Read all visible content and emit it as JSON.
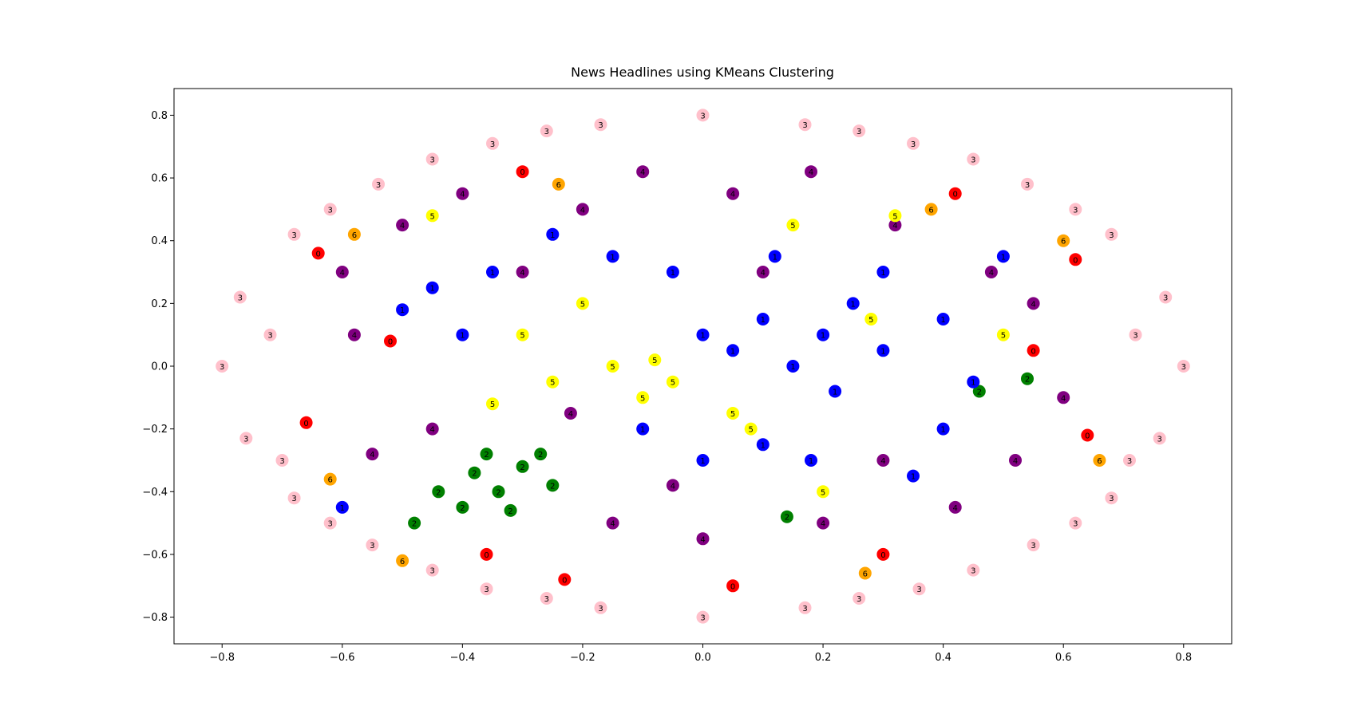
{
  "chart_data": {
    "type": "scatter",
    "title": "News Headlines using KMeans Clustering",
    "xlabel": "",
    "ylabel": "",
    "xlim": [
      -0.88,
      0.88
    ],
    "ylim": [
      -0.885,
      0.885
    ],
    "xticks": [
      -0.8,
      -0.6,
      -0.4,
      -0.2,
      0.0,
      0.2,
      0.4,
      0.6,
      0.8
    ],
    "yticks": [
      -0.8,
      -0.6,
      -0.4,
      -0.2,
      0.0,
      0.2,
      0.4,
      0.6,
      0.8
    ],
    "xtick_labels": [
      "−0.8",
      "−0.6",
      "−0.4",
      "−0.2",
      "0.0",
      "0.2",
      "0.4",
      "0.6",
      "0.8"
    ],
    "ytick_labels": [
      "−0.8",
      "−0.6",
      "−0.4",
      "−0.2",
      "0.0",
      "0.2",
      "0.4",
      "0.6",
      "0.8"
    ],
    "grid": false,
    "legend": "none",
    "cluster_colors": {
      "0": "#ff0000",
      "1": "#0000ff",
      "2": "#008000",
      "3": "#ffc0cb",
      "4": "#800080",
      "5": "#ffff00",
      "6": "#ffa500"
    },
    "points": [
      {
        "x": -0.8,
        "y": 0.0,
        "cluster": 3
      },
      {
        "x": 0.8,
        "y": 0.0,
        "cluster": 3
      },
      {
        "x": 0.0,
        "y": 0.8,
        "cluster": 3
      },
      {
        "x": 0.0,
        "y": -0.8,
        "cluster": 3
      },
      {
        "x": -0.77,
        "y": 0.22,
        "cluster": 3
      },
      {
        "x": -0.76,
        "y": -0.23,
        "cluster": 3
      },
      {
        "x": 0.77,
        "y": 0.22,
        "cluster": 3
      },
      {
        "x": 0.76,
        "y": -0.23,
        "cluster": 3
      },
      {
        "x": -0.68,
        "y": 0.42,
        "cluster": 3
      },
      {
        "x": -0.68,
        "y": -0.42,
        "cluster": 3
      },
      {
        "x": 0.68,
        "y": 0.42,
        "cluster": 3
      },
      {
        "x": 0.68,
        "y": -0.42,
        "cluster": 3
      },
      {
        "x": -0.54,
        "y": 0.58,
        "cluster": 3
      },
      {
        "x": -0.55,
        "y": -0.57,
        "cluster": 3
      },
      {
        "x": 0.54,
        "y": 0.58,
        "cluster": 3
      },
      {
        "x": 0.55,
        "y": -0.57,
        "cluster": 3
      },
      {
        "x": -0.35,
        "y": 0.71,
        "cluster": 3
      },
      {
        "x": -0.36,
        "y": -0.71,
        "cluster": 3
      },
      {
        "x": 0.35,
        "y": 0.71,
        "cluster": 3
      },
      {
        "x": 0.36,
        "y": -0.71,
        "cluster": 3
      },
      {
        "x": -0.17,
        "y": 0.77,
        "cluster": 3
      },
      {
        "x": -0.17,
        "y": -0.77,
        "cluster": 3
      },
      {
        "x": 0.17,
        "y": 0.77,
        "cluster": 3
      },
      {
        "x": 0.17,
        "y": -0.77,
        "cluster": 3
      },
      {
        "x": -0.72,
        "y": 0.1,
        "cluster": 3
      },
      {
        "x": -0.7,
        "y": -0.3,
        "cluster": 3
      },
      {
        "x": 0.72,
        "y": 0.1,
        "cluster": 3
      },
      {
        "x": 0.71,
        "y": -0.3,
        "cluster": 3
      },
      {
        "x": -0.62,
        "y": 0.5,
        "cluster": 3
      },
      {
        "x": 0.62,
        "y": 0.5,
        "cluster": 3
      },
      {
        "x": -0.62,
        "y": -0.5,
        "cluster": 3
      },
      {
        "x": 0.62,
        "y": -0.5,
        "cluster": 3
      },
      {
        "x": -0.45,
        "y": 0.66,
        "cluster": 3
      },
      {
        "x": 0.45,
        "y": 0.66,
        "cluster": 3
      },
      {
        "x": -0.45,
        "y": -0.65,
        "cluster": 3
      },
      {
        "x": 0.45,
        "y": -0.65,
        "cluster": 3
      },
      {
        "x": -0.26,
        "y": 0.75,
        "cluster": 3
      },
      {
        "x": 0.26,
        "y": 0.75,
        "cluster": 3
      },
      {
        "x": -0.26,
        "y": -0.74,
        "cluster": 3
      },
      {
        "x": 0.26,
        "y": -0.74,
        "cluster": 3
      },
      {
        "x": -0.64,
        "y": 0.36,
        "cluster": 0
      },
      {
        "x": -0.66,
        "y": -0.18,
        "cluster": 0
      },
      {
        "x": 0.62,
        "y": 0.34,
        "cluster": 0
      },
      {
        "x": 0.64,
        "y": -0.22,
        "cluster": 0
      },
      {
        "x": -0.3,
        "y": 0.62,
        "cluster": 0
      },
      {
        "x": 0.42,
        "y": 0.55,
        "cluster": 0
      },
      {
        "x": -0.36,
        "y": -0.6,
        "cluster": 0
      },
      {
        "x": 0.3,
        "y": -0.6,
        "cluster": 0
      },
      {
        "x": -0.23,
        "y": -0.68,
        "cluster": 0
      },
      {
        "x": 0.05,
        "y": -0.7,
        "cluster": 0
      },
      {
        "x": -0.52,
        "y": 0.08,
        "cluster": 0
      },
      {
        "x": 0.55,
        "y": 0.05,
        "cluster": 0
      },
      {
        "x": -0.58,
        "y": 0.42,
        "cluster": 6
      },
      {
        "x": 0.6,
        "y": 0.4,
        "cluster": 6
      },
      {
        "x": -0.62,
        "y": -0.36,
        "cluster": 6
      },
      {
        "x": 0.66,
        "y": -0.3,
        "cluster": 6
      },
      {
        "x": -0.24,
        "y": 0.58,
        "cluster": 6
      },
      {
        "x": 0.27,
        "y": -0.66,
        "cluster": 6
      },
      {
        "x": -0.5,
        "y": -0.62,
        "cluster": 6
      },
      {
        "x": 0.38,
        "y": 0.5,
        "cluster": 6
      },
      {
        "x": -0.38,
        "y": -0.34,
        "cluster": 2
      },
      {
        "x": -0.34,
        "y": -0.4,
        "cluster": 2
      },
      {
        "x": -0.3,
        "y": -0.32,
        "cluster": 2
      },
      {
        "x": -0.27,
        "y": -0.28,
        "cluster": 2
      },
      {
        "x": -0.4,
        "y": -0.45,
        "cluster": 2
      },
      {
        "x": -0.44,
        "y": -0.4,
        "cluster": 2
      },
      {
        "x": -0.32,
        "y": -0.46,
        "cluster": 2
      },
      {
        "x": -0.25,
        "y": -0.38,
        "cluster": 2
      },
      {
        "x": -0.36,
        "y": -0.28,
        "cluster": 2
      },
      {
        "x": -0.48,
        "y": -0.5,
        "cluster": 2
      },
      {
        "x": 0.46,
        "y": -0.08,
        "cluster": 2
      },
      {
        "x": 0.54,
        "y": -0.04,
        "cluster": 2
      },
      {
        "x": 0.14,
        "y": -0.48,
        "cluster": 2
      },
      {
        "x": -0.6,
        "y": 0.3,
        "cluster": 4
      },
      {
        "x": -0.5,
        "y": 0.45,
        "cluster": 4
      },
      {
        "x": -0.45,
        "y": -0.2,
        "cluster": 4
      },
      {
        "x": -0.55,
        "y": -0.28,
        "cluster": 4
      },
      {
        "x": -0.2,
        "y": 0.5,
        "cluster": 4
      },
      {
        "x": -0.1,
        "y": 0.62,
        "cluster": 4
      },
      {
        "x": 0.05,
        "y": 0.55,
        "cluster": 4
      },
      {
        "x": 0.18,
        "y": 0.62,
        "cluster": 4
      },
      {
        "x": 0.32,
        "y": 0.45,
        "cluster": 4
      },
      {
        "x": 0.48,
        "y": 0.3,
        "cluster": 4
      },
      {
        "x": 0.55,
        "y": 0.2,
        "cluster": 4
      },
      {
        "x": 0.52,
        "y": -0.3,
        "cluster": 4
      },
      {
        "x": 0.42,
        "y": -0.45,
        "cluster": 4
      },
      {
        "x": 0.2,
        "y": -0.5,
        "cluster": 4
      },
      {
        "x": 0.0,
        "y": -0.55,
        "cluster": 4
      },
      {
        "x": -0.15,
        "y": -0.5,
        "cluster": 4
      },
      {
        "x": -0.05,
        "y": -0.38,
        "cluster": 4
      },
      {
        "x": -0.22,
        "y": -0.15,
        "cluster": 4
      },
      {
        "x": 0.3,
        "y": -0.3,
        "cluster": 4
      },
      {
        "x": -0.3,
        "y": 0.3,
        "cluster": 4
      },
      {
        "x": 0.1,
        "y": 0.3,
        "cluster": 4
      },
      {
        "x": -0.58,
        "y": 0.1,
        "cluster": 4
      },
      {
        "x": 0.6,
        "y": -0.1,
        "cluster": 4
      },
      {
        "x": -0.4,
        "y": 0.55,
        "cluster": 4
      },
      {
        "x": 0.0,
        "y": 0.1,
        "cluster": 1
      },
      {
        "x": 0.05,
        "y": 0.05,
        "cluster": 1
      },
      {
        "x": 0.1,
        "y": 0.15,
        "cluster": 1
      },
      {
        "x": 0.15,
        "y": 0.0,
        "cluster": 1
      },
      {
        "x": 0.2,
        "y": 0.1,
        "cluster": 1
      },
      {
        "x": 0.22,
        "y": -0.08,
        "cluster": 1
      },
      {
        "x": 0.25,
        "y": 0.2,
        "cluster": 1
      },
      {
        "x": 0.3,
        "y": 0.05,
        "cluster": 1
      },
      {
        "x": 0.3,
        "y": 0.3,
        "cluster": 1
      },
      {
        "x": 0.12,
        "y": 0.35,
        "cluster": 1
      },
      {
        "x": -0.05,
        "y": 0.3,
        "cluster": 1
      },
      {
        "x": -0.15,
        "y": 0.35,
        "cluster": 1
      },
      {
        "x": -0.25,
        "y": 0.42,
        "cluster": 1
      },
      {
        "x": -0.35,
        "y": 0.3,
        "cluster": 1
      },
      {
        "x": -0.45,
        "y": 0.25,
        "cluster": 1
      },
      {
        "x": -0.5,
        "y": 0.18,
        "cluster": 1
      },
      {
        "x": -0.4,
        "y": 0.1,
        "cluster": 1
      },
      {
        "x": 0.4,
        "y": 0.15,
        "cluster": 1
      },
      {
        "x": 0.45,
        "y": -0.05,
        "cluster": 1
      },
      {
        "x": 0.4,
        "y": -0.2,
        "cluster": 1
      },
      {
        "x": 0.35,
        "y": -0.35,
        "cluster": 1
      },
      {
        "x": 0.1,
        "y": -0.25,
        "cluster": 1
      },
      {
        "x": 0.18,
        "y": -0.3,
        "cluster": 1
      },
      {
        "x": -0.1,
        "y": -0.2,
        "cluster": 1
      },
      {
        "x": 0.0,
        "y": -0.3,
        "cluster": 1
      },
      {
        "x": 0.5,
        "y": 0.35,
        "cluster": 1
      },
      {
        "x": -0.6,
        "y": -0.45,
        "cluster": 1
      },
      {
        "x": -0.2,
        "y": 0.2,
        "cluster": 5
      },
      {
        "x": -0.15,
        "y": 0.0,
        "cluster": 5
      },
      {
        "x": -0.08,
        "y": 0.02,
        "cluster": 5
      },
      {
        "x": -0.1,
        "y": -0.1,
        "cluster": 5
      },
      {
        "x": -0.25,
        "y": -0.05,
        "cluster": 5
      },
      {
        "x": -0.3,
        "y": 0.1,
        "cluster": 5
      },
      {
        "x": 0.05,
        "y": -0.15,
        "cluster": 5
      },
      {
        "x": 0.08,
        "y": -0.2,
        "cluster": 5
      },
      {
        "x": -0.35,
        "y": -0.12,
        "cluster": 5
      },
      {
        "x": -0.05,
        "y": -0.05,
        "cluster": 5
      },
      {
        "x": 0.15,
        "y": 0.45,
        "cluster": 5
      },
      {
        "x": 0.28,
        "y": 0.15,
        "cluster": 5
      },
      {
        "x": -0.45,
        "y": 0.48,
        "cluster": 5
      },
      {
        "x": 0.2,
        "y": -0.4,
        "cluster": 5
      },
      {
        "x": 0.5,
        "y": 0.1,
        "cluster": 5
      },
      {
        "x": 0.32,
        "y": 0.48,
        "cluster": 5
      }
    ]
  }
}
